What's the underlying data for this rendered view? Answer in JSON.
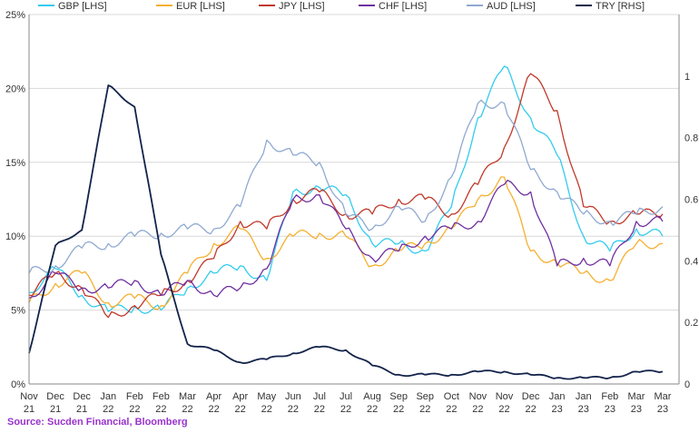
{
  "chart_data": {
    "type": "line",
    "title": "",
    "source": "Source: Sucden Financial, Bloomberg",
    "source_color": "#9933cc",
    "x_labels": [
      {
        "m": "Nov",
        "y": "21"
      },
      {
        "m": "Dec",
        "y": "21"
      },
      {
        "m": "Dec",
        "y": "21"
      },
      {
        "m": "Jan",
        "y": "22"
      },
      {
        "m": "Feb",
        "y": "22"
      },
      {
        "m": "Feb",
        "y": "22"
      },
      {
        "m": "Mar",
        "y": "22"
      },
      {
        "m": "Apr",
        "y": "22"
      },
      {
        "m": "Apr",
        "y": "22"
      },
      {
        "m": "May",
        "y": "22"
      },
      {
        "m": "Jun",
        "y": "22"
      },
      {
        "m": "Jul",
        "y": "22"
      },
      {
        "m": "Jul",
        "y": "22"
      },
      {
        "m": "Aug",
        "y": "22"
      },
      {
        "m": "Sep",
        "y": "22"
      },
      {
        "m": "Sep",
        "y": "22"
      },
      {
        "m": "Oct",
        "y": "22"
      },
      {
        "m": "Nov",
        "y": "22"
      },
      {
        "m": "Nov",
        "y": "22"
      },
      {
        "m": "Dec",
        "y": "22"
      },
      {
        "m": "Jan",
        "y": "23"
      },
      {
        "m": "Jan",
        "y": "23"
      },
      {
        "m": "Feb",
        "y": "23"
      },
      {
        "m": "Mar",
        "y": "23"
      },
      {
        "m": "Mar",
        "y": "23"
      }
    ],
    "left_axis": {
      "ticks": [
        "0%",
        "5%",
        "10%",
        "15%",
        "20%",
        "25%"
      ],
      "ylim": [
        0,
        25
      ]
    },
    "right_axis": {
      "ticks": [
        "0",
        "0.2",
        "0.4",
        "0.6",
        "0.8",
        "1"
      ],
      "ylim": [
        0,
        1.2
      ]
    },
    "grid": "horizontal",
    "legend_position": "top",
    "series": [
      {
        "name": "GBP [LHS]",
        "axis": "left",
        "color": "#33ccee",
        "values": [
          6.2,
          7.8,
          6.0,
          4.9,
          5.2,
          5.0,
          6.5,
          7.5,
          8.0,
          7.0,
          13.0,
          13.3,
          12.8,
          9.5,
          9.5,
          9.0,
          12.0,
          18.0,
          21.5,
          18.0,
          15.5,
          10.0,
          9.0,
          10.5,
          10.0
        ]
      },
      {
        "name": "EUR [LHS]",
        "axis": "left",
        "color": "#f5b030",
        "values": [
          5.5,
          6.8,
          7.5,
          5.5,
          5.8,
          5.3,
          7.5,
          9.5,
          10.5,
          8.5,
          10.0,
          10.2,
          10.0,
          8.0,
          9.0,
          9.5,
          10.5,
          12.5,
          14.0,
          9.0,
          8.2,
          7.5,
          7.0,
          9.5,
          9.5
        ]
      },
      {
        "name": "JPY [LHS]",
        "axis": "left",
        "color": "#c0392b",
        "values": [
          6.0,
          7.5,
          6.5,
          4.5,
          5.3,
          6.0,
          7.0,
          8.5,
          11.0,
          10.5,
          12.5,
          13.0,
          11.5,
          11.5,
          12.5,
          12.5,
          11.5,
          13.5,
          16.0,
          21.0,
          18.5,
          12.0,
          11.0,
          11.5,
          11.5
        ]
      },
      {
        "name": "CHF [LHS]",
        "axis": "left",
        "color": "#7030a0",
        "values": [
          5.8,
          7.5,
          6.5,
          6.5,
          7.0,
          6.0,
          7.0,
          6.0,
          6.5,
          7.8,
          12.5,
          12.8,
          10.5,
          8.5,
          9.0,
          10.0,
          10.5,
          11.0,
          13.5,
          13.0,
          8.0,
          8.5,
          8.0,
          11.0,
          11.0
        ]
      },
      {
        "name": "AUD [LHS]",
        "axis": "left",
        "color": "#8fa9d0",
        "values": [
          7.5,
          8.0,
          9.2,
          9.5,
          10.0,
          10.2,
          10.5,
          10.5,
          12.0,
          16.5,
          15.5,
          15.0,
          11.5,
          10.5,
          12.0,
          11.0,
          14.0,
          19.0,
          19.0,
          14.5,
          13.0,
          11.5,
          11.0,
          11.5,
          12.0
        ]
      },
      {
        "name": "TRY [RHS]",
        "axis": "right",
        "color": "#13234b",
        "values": [
          0.1,
          0.45,
          0.5,
          0.97,
          0.9,
          0.42,
          0.13,
          0.11,
          0.07,
          0.08,
          0.1,
          0.12,
          0.11,
          0.06,
          0.03,
          0.03,
          0.03,
          0.04,
          0.04,
          0.03,
          0.02,
          0.02,
          0.02,
          0.04,
          0.04
        ]
      }
    ]
  }
}
